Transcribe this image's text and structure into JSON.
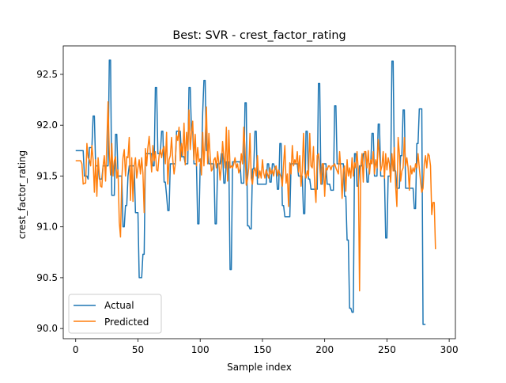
{
  "chart_data": {
    "type": "line",
    "title": "Best: SVR - crest_factor_rating",
    "xlabel": "Sample index",
    "ylabel": "crest_factor_rating",
    "xlim": [
      -10,
      305
    ],
    "ylim": [
      89.9,
      92.78
    ],
    "xticks": [
      0,
      50,
      100,
      150,
      200,
      250,
      300
    ],
    "xtick_labels": [
      "0",
      "50",
      "100",
      "150",
      "200",
      "250",
      "300"
    ],
    "yticks": [
      90.0,
      90.5,
      91.0,
      91.5,
      92.0,
      92.5
    ],
    "ytick_labels": [
      "90.0",
      "90.5",
      "91.0",
      "91.5",
      "92.0",
      "92.5"
    ],
    "grid": false,
    "legend_position": "lower left",
    "colors": {
      "actual": "#1f77b4",
      "predicted": "#ff7f0e"
    },
    "series": [
      {
        "name": "Actual",
        "values": [
          91.75,
          91.75,
          91.75,
          91.75,
          91.75,
          91.75,
          91.75,
          91.5,
          91.5,
          91.5,
          91.47,
          91.78,
          91.78,
          91.78,
          92.09,
          92.09,
          91.6,
          91.6,
          91.6,
          91.47,
          91.47,
          91.47,
          91.6,
          91.6,
          91.6,
          91.6,
          91.6,
          92.64,
          92.64,
          91.31,
          91.31,
          91.31,
          91.91,
          91.91,
          91.5,
          91.5,
          91.5,
          91.5,
          91.0,
          91.0,
          91.21,
          91.21,
          91.5,
          91.6,
          91.6,
          91.6,
          91.6,
          91.6,
          91.14,
          91.14,
          91.14,
          90.5,
          90.5,
          90.5,
          90.73,
          90.73,
          91.72,
          91.72,
          91.72,
          91.72,
          91.72,
          91.72,
          91.6,
          91.6,
          92.37,
          92.37,
          91.72,
          91.72,
          91.72,
          91.94,
          91.94,
          91.44,
          91.44,
          91.31,
          91.16,
          91.16,
          91.62,
          91.62,
          91.62,
          91.62,
          91.62,
          91.94,
          91.94,
          91.94,
          91.94,
          91.69,
          91.69,
          91.69,
          91.62,
          91.62,
          91.62,
          92.37,
          92.37,
          91.94,
          91.94,
          91.62,
          91.62,
          91.62,
          91.03,
          91.03,
          91.62,
          91.62,
          92.12,
          92.44,
          92.44,
          91.75,
          91.75,
          91.62,
          91.62,
          91.62,
          91.62,
          91.62,
          91.03,
          91.03,
          91.62,
          91.62,
          91.62,
          91.72,
          91.72,
          91.43,
          91.43,
          91.64,
          91.64,
          91.64,
          90.58,
          90.58,
          91.64,
          91.64,
          91.64,
          91.64,
          91.64,
          91.64,
          91.64,
          91.43,
          91.43,
          91.43,
          92.22,
          92.22,
          91.01,
          91.01,
          90.98,
          90.98,
          91.57,
          91.57,
          91.94,
          91.94,
          91.42,
          91.42,
          91.42,
          91.42,
          91.42,
          91.42,
          91.42,
          91.42,
          91.62,
          91.62,
          91.44,
          91.44,
          91.62,
          91.62,
          91.57,
          91.57,
          91.37,
          91.37,
          91.82,
          91.82,
          91.21,
          91.21,
          91.1,
          91.1,
          91.1,
          91.1,
          91.1,
          91.62,
          91.62,
          91.62,
          91.62,
          91.62,
          91.62,
          91.5,
          91.5,
          91.5,
          91.5,
          91.13,
          91.13,
          91.94,
          91.94,
          91.47,
          91.47,
          91.37,
          91.37,
          91.37,
          91.37,
          91.37,
          91.37,
          92.41,
          92.41,
          91.42,
          91.42,
          91.62,
          91.62,
          91.62,
          91.42,
          91.42,
          91.42,
          91.36,
          91.36,
          91.36,
          92.19,
          92.19,
          91.62,
          91.62,
          91.62,
          91.62,
          91.62,
          91.62,
          91.3,
          91.3,
          90.87,
          90.87,
          90.2,
          90.2,
          90.16,
          90.16,
          91.72,
          91.72,
          91.4,
          91.4,
          91.6,
          91.6,
          91.6,
          91.72,
          91.72,
          91.72,
          91.44,
          91.44,
          91.62,
          91.62,
          91.92,
          91.92,
          91.5,
          91.5,
          91.5,
          92.01,
          92.01,
          91.5,
          91.5,
          91.5,
          91.5,
          90.89,
          90.89,
          91.5,
          91.5,
          91.5,
          92.63,
          92.63,
          91.55,
          91.55,
          91.38,
          91.38,
          91.38,
          91.7,
          91.7,
          92.15,
          92.15,
          91.38,
          91.38,
          91.38,
          91.38,
          91.38,
          91.38,
          91.38,
          91.18,
          91.18,
          91.82,
          91.82,
          92.16,
          92.16,
          92.16,
          90.04,
          90.04,
          90.04
        ]
      },
      {
        "name": "Predicted",
        "values": [
          91.65,
          91.65,
          91.65,
          91.65,
          91.65,
          91.62,
          91.42,
          91.43,
          91.43,
          91.82,
          91.68,
          91.66,
          91.6,
          91.8,
          91.66,
          91.34,
          91.66,
          91.3,
          91.68,
          91.52,
          91.4,
          91.39,
          91.6,
          91.7,
          91.45,
          91.82,
          92.23,
          91.72,
          91.51,
          91.82,
          91.5,
          91.65,
          91.69,
          91.48,
          91.56,
          91.05,
          90.9,
          91.47,
          91.68,
          91.76,
          91.5,
          91.69,
          91.68,
          91.88,
          91.26,
          91.68,
          91.25,
          91.6,
          91.68,
          91.48,
          91.58,
          91.66,
          91.52,
          91.68,
          91.53,
          91.14,
          91.77,
          91.6,
          91.78,
          91.89,
          91.72,
          91.54,
          91.8,
          91.65,
          91.74,
          91.56,
          91.55,
          91.7,
          91.76,
          91.68,
          91.76,
          91.79,
          91.62,
          91.93,
          91.42,
          91.66,
          91.7,
          91.88,
          91.66,
          91.52,
          91.62,
          91.9,
          91.85,
          91.98,
          91.65,
          91.82,
          91.7,
          92.02,
          91.61,
          91.93,
          91.75,
          92.15,
          91.76,
          91.92,
          92.04,
          91.66,
          91.91,
          91.6,
          91.78,
          91.64,
          91.67,
          91.51,
          91.93,
          91.6,
          91.85,
          92.18,
          91.62,
          91.92,
          91.7,
          91.55,
          91.57,
          91.66,
          91.68,
          91.58,
          91.74,
          91.62,
          91.46,
          91.6,
          91.84,
          91.68,
          91.58,
          91.98,
          91.45,
          91.95,
          91.58,
          91.6,
          91.58,
          91.62,
          91.68,
          91.58,
          91.62,
          91.53,
          91.57,
          91.72,
          91.62,
          91.98,
          91.77,
          91.41,
          91.47,
          91.58,
          91.92,
          91.48,
          91.42,
          91.55,
          91.58,
          91.5,
          91.7,
          91.48,
          91.55,
          91.48,
          91.66,
          91.53,
          91.48,
          91.56,
          91.52,
          91.48,
          91.58,
          91.52,
          91.56,
          91.5,
          91.58,
          91.6,
          91.5,
          91.56,
          91.52,
          91.49,
          91.4,
          91.62,
          91.8,
          91.43,
          91.52,
          91.2,
          91.63,
          91.52,
          91.8,
          91.6,
          91.66,
          91.62,
          91.74,
          91.54,
          91.7,
          91.4,
          91.55,
          91.92,
          91.53,
          91.48,
          91.55,
          91.5,
          91.92,
          91.6,
          91.58,
          91.79,
          91.4,
          91.24,
          91.7,
          91.72,
          91.6,
          91.42,
          91.62,
          91.62,
          91.3,
          91.58,
          91.56,
          91.6,
          91.6,
          91.56,
          91.6,
          91.6,
          91.62,
          91.58,
          91.55,
          91.52,
          91.74,
          91.56,
          91.28,
          91.56,
          91.6,
          91.35,
          91.66,
          91.5,
          91.58,
          91.48,
          91.68,
          91.5,
          91.63,
          91.58,
          91.74,
          91.55,
          90.37,
          91.6,
          91.72,
          91.44,
          91.74,
          91.74,
          91.58,
          91.75,
          91.52,
          91.66,
          91.62,
          91.74,
          91.52,
          91.66,
          91.58,
          91.86,
          91.7,
          91.55,
          91.6,
          91.74,
          91.48,
          91.72,
          91.56,
          91.68,
          91.62,
          91.44,
          91.72,
          91.55,
          91.78,
          91.4,
          91.2,
          91.88,
          91.72,
          91.45,
          91.55,
          91.58,
          91.88,
          91.6,
          91.68,
          91.58,
          91.36,
          91.6,
          91.52,
          91.58,
          91.54,
          91.62,
          91.58,
          91.72,
          91.58,
          91.45,
          91.34,
          91.38,
          91.62,
          91.7,
          91.58,
          91.72,
          91.7,
          91.6,
          91.12,
          91.24,
          91.24,
          90.78
        ]
      }
    ]
  }
}
